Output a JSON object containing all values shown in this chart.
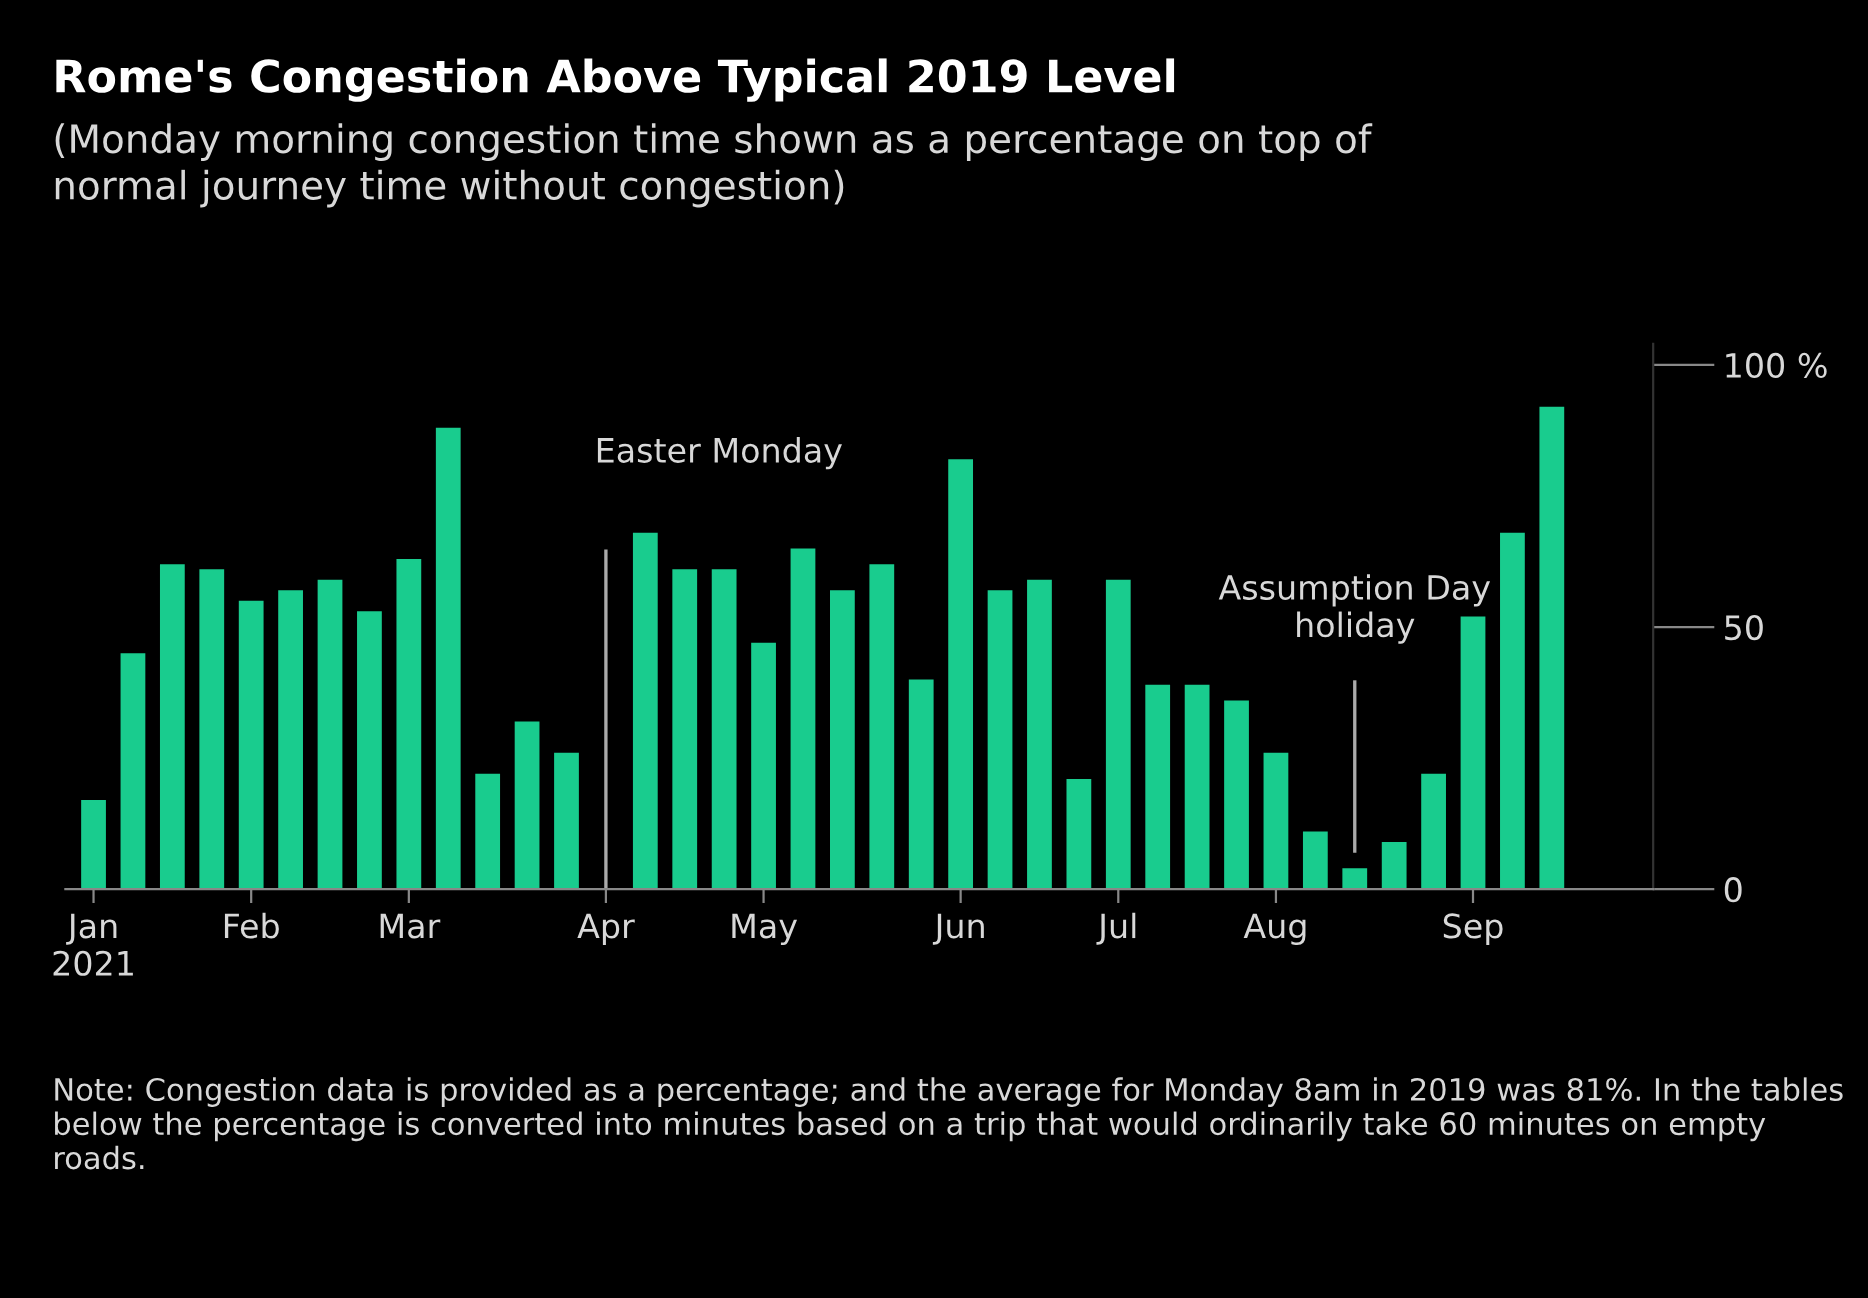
{
  "chart_data": {
    "type": "bar",
    "title": "Rome's Congestion Above Typical 2019 Level",
    "subtitle": "(Monday morning congestion time shown as a percentage on top of\nnormal journey time without congestion)",
    "x": [
      "2021-01-04",
      "2021-01-11",
      "2021-01-18",
      "2021-01-25",
      "2021-02-01",
      "2021-02-08",
      "2021-02-15",
      "2021-02-22",
      "2021-03-01",
      "2021-03-08",
      "2021-03-15",
      "2021-03-22",
      "2021-03-29",
      "2021-04-05",
      "2021-04-12",
      "2021-04-19",
      "2021-04-26",
      "2021-05-03",
      "2021-05-10",
      "2021-05-17",
      "2021-05-24",
      "2021-05-31",
      "2021-06-07",
      "2021-06-14",
      "2021-06-21",
      "2021-06-28",
      "2021-07-05",
      "2021-07-12",
      "2021-07-19",
      "2021-07-26",
      "2021-08-02",
      "2021-08-09",
      "2021-08-16",
      "2021-08-23",
      "2021-08-30",
      "2021-09-06",
      "2021-09-13",
      "2021-09-20"
    ],
    "values": [
      17,
      45,
      62,
      61,
      55,
      57,
      59,
      53,
      63,
      88,
      22,
      32,
      26,
      null,
      68,
      61,
      61,
      47,
      65,
      57,
      62,
      40,
      82,
      57,
      59,
      21,
      59,
      39,
      39,
      36,
      26,
      11,
      4,
      9,
      22,
      52,
      68,
      92
    ],
    "color": "#19cc8e",
    "xlim": [
      "2020-12-30",
      "2021-10-08"
    ],
    "xticks": [
      {
        "value": "2021-01-04",
        "label": "Jan\n2021"
      },
      {
        "value": "2021-02-01",
        "label": "Feb"
      },
      {
        "value": "2021-03-01",
        "label": "Mar"
      },
      {
        "value": "2021-04-05",
        "label": "Apr"
      },
      {
        "value": "2021-05-03",
        "label": "May"
      },
      {
        "value": "2021-06-07",
        "label": "Jun"
      },
      {
        "value": "2021-07-05",
        "label": "Jul"
      },
      {
        "value": "2021-08-02",
        "label": "Aug"
      },
      {
        "value": "2021-09-06",
        "label": "Sep"
      }
    ],
    "ylim": [
      0,
      104
    ],
    "yticks": [
      0,
      50,
      {
        "value": 100,
        "label": "100 %"
      }
    ],
    "ref_lines": [
      {
        "axis": "x",
        "value": "2021-04-05",
        "label": "Easter Monday"
      },
      {
        "axis": "x",
        "value": "2021-08-16",
        "label": "Assumption Day\nholiday"
      }
    ],
    "annotations": [
      "Note: Congestion data is provided as a percentage; and the average for Monday 8am in 2019 was 81%. In the tables below the percentage is converted into minutes based on a trip that would ordinarily take 60 minutes on empty roads."
    ]
  }
}
